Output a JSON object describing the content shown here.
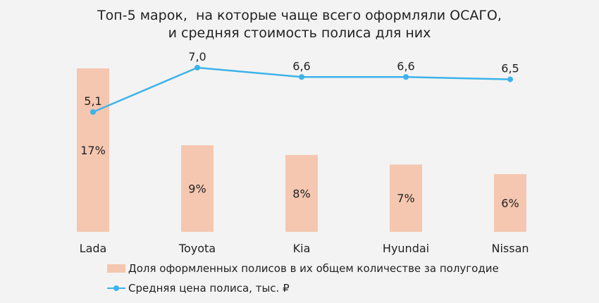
{
  "title_line1": "Топ-5 марок,  на которые чаще всего оформляли ОСАГО,",
  "title_line2": "и средняя стоимость полиса для них",
  "colors": {
    "bar": "#f5c7b0",
    "line": "#3db3ea",
    "text": "#222222",
    "background": "#f3f3f3"
  },
  "legend": {
    "bars_label": "Доля оформленных полисов в их общем количестве за полугодие",
    "line_label": "Средняя цена полиса, тыс. ₽"
  },
  "chart_data": {
    "type": "bar",
    "categories": [
      "Lada",
      "Toyota",
      "Kia",
      "Hyundai",
      "Nissan"
    ],
    "series": [
      {
        "name": "Доля оформленных полисов в их общем количестве за полугодие",
        "type": "bar",
        "values": [
          17,
          9,
          8,
          7,
          6
        ],
        "labels": [
          "17%",
          "9%",
          "8%",
          "7%",
          "6%"
        ]
      },
      {
        "name": "Средняя цена полиса, тыс. ₽",
        "type": "line",
        "values": [
          5.1,
          7.0,
          6.6,
          6.6,
          6.5
        ],
        "labels": [
          "5,1",
          "7,0",
          "6,6",
          "6,6",
          "6,5"
        ]
      }
    ],
    "grid": false,
    "legend_position": "bottom-left"
  }
}
